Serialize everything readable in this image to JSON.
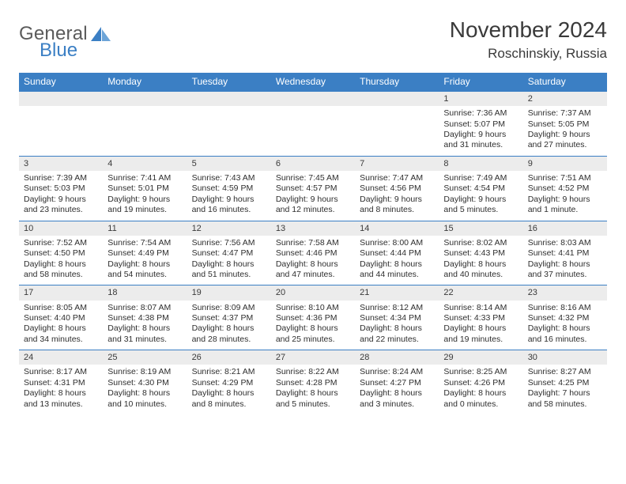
{
  "brand": {
    "line1": "General",
    "line2": "Blue"
  },
  "title": "November 2024",
  "location": "Roschinskiy, Russia",
  "weekdays": [
    "Sunday",
    "Monday",
    "Tuesday",
    "Wednesday",
    "Thursday",
    "Friday",
    "Saturday"
  ],
  "colors": {
    "header_bg": "#3b7fc4",
    "header_text": "#ffffff",
    "daynum_bg": "#ececec",
    "rule": "#3b7fc4",
    "brand_gray": "#5b5b5b",
    "brand_blue": "#3b7fc4",
    "text": "#2e2e2e",
    "page_bg": "#ffffff"
  },
  "weeks": [
    {
      "nums": [
        "",
        "",
        "",
        "",
        "",
        "1",
        "2"
      ],
      "cells": [
        null,
        null,
        null,
        null,
        null,
        {
          "sr": "7:36 AM",
          "ss": "5:07 PM",
          "dl": "9 hours and 31 minutes."
        },
        {
          "sr": "7:37 AM",
          "ss": "5:05 PM",
          "dl": "9 hours and 27 minutes."
        }
      ]
    },
    {
      "nums": [
        "3",
        "4",
        "5",
        "6",
        "7",
        "8",
        "9"
      ],
      "cells": [
        {
          "sr": "7:39 AM",
          "ss": "5:03 PM",
          "dl": "9 hours and 23 minutes."
        },
        {
          "sr": "7:41 AM",
          "ss": "5:01 PM",
          "dl": "9 hours and 19 minutes."
        },
        {
          "sr": "7:43 AM",
          "ss": "4:59 PM",
          "dl": "9 hours and 16 minutes."
        },
        {
          "sr": "7:45 AM",
          "ss": "4:57 PM",
          "dl": "9 hours and 12 minutes."
        },
        {
          "sr": "7:47 AM",
          "ss": "4:56 PM",
          "dl": "9 hours and 8 minutes."
        },
        {
          "sr": "7:49 AM",
          "ss": "4:54 PM",
          "dl": "9 hours and 5 minutes."
        },
        {
          "sr": "7:51 AM",
          "ss": "4:52 PM",
          "dl": "9 hours and 1 minute."
        }
      ]
    },
    {
      "nums": [
        "10",
        "11",
        "12",
        "13",
        "14",
        "15",
        "16"
      ],
      "cells": [
        {
          "sr": "7:52 AM",
          "ss": "4:50 PM",
          "dl": "8 hours and 58 minutes."
        },
        {
          "sr": "7:54 AM",
          "ss": "4:49 PM",
          "dl": "8 hours and 54 minutes."
        },
        {
          "sr": "7:56 AM",
          "ss": "4:47 PM",
          "dl": "8 hours and 51 minutes."
        },
        {
          "sr": "7:58 AM",
          "ss": "4:46 PM",
          "dl": "8 hours and 47 minutes."
        },
        {
          "sr": "8:00 AM",
          "ss": "4:44 PM",
          "dl": "8 hours and 44 minutes."
        },
        {
          "sr": "8:02 AM",
          "ss": "4:43 PM",
          "dl": "8 hours and 40 minutes."
        },
        {
          "sr": "8:03 AM",
          "ss": "4:41 PM",
          "dl": "8 hours and 37 minutes."
        }
      ]
    },
    {
      "nums": [
        "17",
        "18",
        "19",
        "20",
        "21",
        "22",
        "23"
      ],
      "cells": [
        {
          "sr": "8:05 AM",
          "ss": "4:40 PM",
          "dl": "8 hours and 34 minutes."
        },
        {
          "sr": "8:07 AM",
          "ss": "4:38 PM",
          "dl": "8 hours and 31 minutes."
        },
        {
          "sr": "8:09 AM",
          "ss": "4:37 PM",
          "dl": "8 hours and 28 minutes."
        },
        {
          "sr": "8:10 AM",
          "ss": "4:36 PM",
          "dl": "8 hours and 25 minutes."
        },
        {
          "sr": "8:12 AM",
          "ss": "4:34 PM",
          "dl": "8 hours and 22 minutes."
        },
        {
          "sr": "8:14 AM",
          "ss": "4:33 PM",
          "dl": "8 hours and 19 minutes."
        },
        {
          "sr": "8:16 AM",
          "ss": "4:32 PM",
          "dl": "8 hours and 16 minutes."
        }
      ]
    },
    {
      "nums": [
        "24",
        "25",
        "26",
        "27",
        "28",
        "29",
        "30"
      ],
      "cells": [
        {
          "sr": "8:17 AM",
          "ss": "4:31 PM",
          "dl": "8 hours and 13 minutes."
        },
        {
          "sr": "8:19 AM",
          "ss": "4:30 PM",
          "dl": "8 hours and 10 minutes."
        },
        {
          "sr": "8:21 AM",
          "ss": "4:29 PM",
          "dl": "8 hours and 8 minutes."
        },
        {
          "sr": "8:22 AM",
          "ss": "4:28 PM",
          "dl": "8 hours and 5 minutes."
        },
        {
          "sr": "8:24 AM",
          "ss": "4:27 PM",
          "dl": "8 hours and 3 minutes."
        },
        {
          "sr": "8:25 AM",
          "ss": "4:26 PM",
          "dl": "8 hours and 0 minutes."
        },
        {
          "sr": "8:27 AM",
          "ss": "4:25 PM",
          "dl": "7 hours and 58 minutes."
        }
      ]
    }
  ],
  "labels": {
    "sunrise": "Sunrise: ",
    "sunset": "Sunset: ",
    "daylight": "Daylight: "
  }
}
